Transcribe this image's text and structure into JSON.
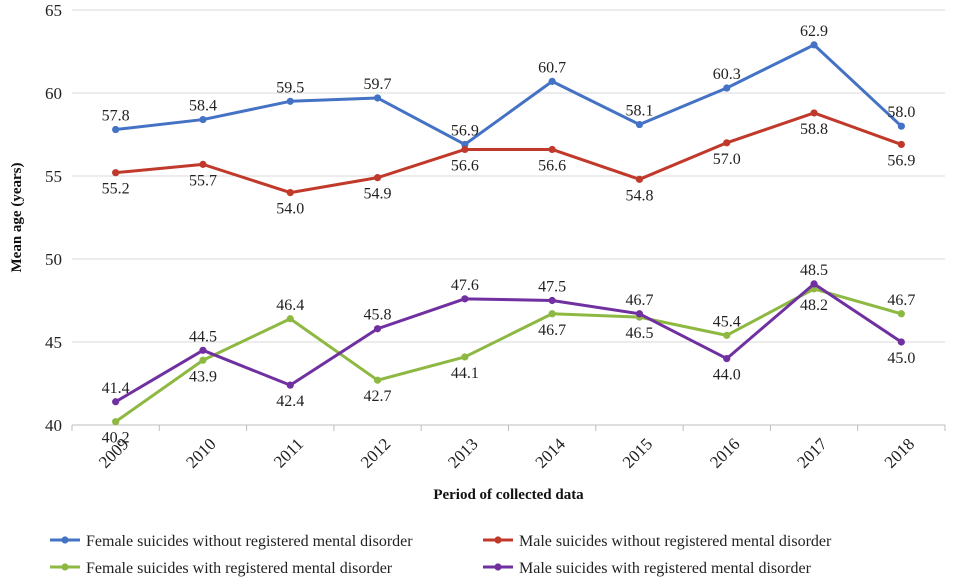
{
  "chart_data": {
    "type": "line",
    "title": "",
    "xlabel": "Period of collected data",
    "ylabel": "Mean age (years)",
    "ylim": [
      40,
      65
    ],
    "yticks": [
      40,
      45,
      50,
      55,
      60,
      65
    ],
    "grid": "horizontal",
    "legend_position": "bottom",
    "categories": [
      "2009",
      "2010",
      "2011",
      "2012",
      "2013",
      "2014",
      "2015",
      "2016",
      "2017",
      "2018"
    ],
    "series": [
      {
        "name": "Female suicides without registered mental disorder",
        "color": "#4472C4",
        "values": [
          57.8,
          58.4,
          59.5,
          59.7,
          56.9,
          60.7,
          58.1,
          60.3,
          62.9,
          58.0
        ],
        "labels": [
          "57.8",
          "58.4",
          "59.5",
          "59.7",
          "56.9",
          "60.7",
          "58.1",
          "60.3",
          "62.9",
          "58.0"
        ],
        "label_pos": [
          "above",
          "above",
          "above",
          "above",
          "above",
          "above",
          "above",
          "above",
          "above",
          "above"
        ]
      },
      {
        "name": "Male suicides without registered mental disorder",
        "color": "#C0392B",
        "values": [
          55.2,
          55.7,
          54.0,
          54.9,
          56.6,
          56.6,
          54.8,
          57.0,
          58.8,
          56.9
        ],
        "labels": [
          "55.2",
          "55.7",
          "54.0",
          "54.9",
          "56.6",
          "56.6",
          "54.8",
          "57.0",
          "58.8",
          "56.9"
        ],
        "label_pos": [
          "below",
          "below",
          "below",
          "below",
          "below",
          "below",
          "below",
          "below",
          "below",
          "below"
        ]
      },
      {
        "name": "Female suicides with registered mental disorder",
        "color": "#8DB842",
        "values": [
          40.2,
          43.9,
          46.4,
          42.7,
          44.1,
          46.7,
          46.5,
          45.4,
          48.2,
          46.7
        ],
        "labels": [
          "40.2",
          "43.9",
          "46.4",
          "42.7",
          "44.1",
          "46.7",
          "46.5",
          "45.4",
          "48.2",
          "46.7"
        ],
        "label_pos": [
          "below",
          "below",
          "above",
          "below",
          "below",
          "below",
          "below",
          "above",
          "below",
          "above"
        ]
      },
      {
        "name": "Male suicides with registered mental disorder",
        "color": "#7030A0",
        "values": [
          41.4,
          44.5,
          42.4,
          45.8,
          47.6,
          47.5,
          46.7,
          44.0,
          48.5,
          45.0
        ],
        "labels": [
          "41.4",
          "44.5",
          "42.4",
          "45.8",
          "47.6",
          "47.5",
          "46.7",
          "44.0",
          "48.5",
          "45.0"
        ],
        "label_pos": [
          "above",
          "above",
          "below",
          "above",
          "above",
          "above",
          "above",
          "below",
          "above",
          "below"
        ]
      }
    ]
  }
}
